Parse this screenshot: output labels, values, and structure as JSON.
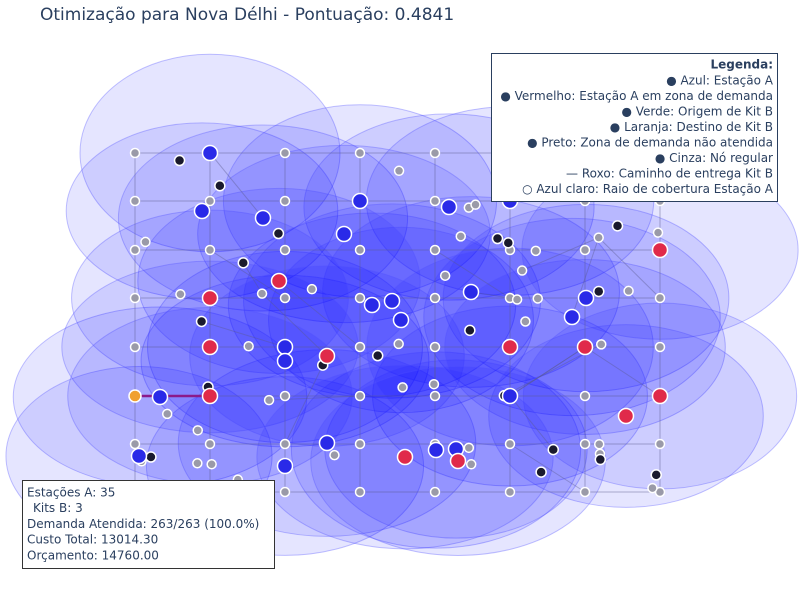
{
  "header": {
    "title": "Otimização para Nova Délhi - Pontuação: 0.4841"
  },
  "legend": {
    "heading": "Legenda:",
    "items": [
      "● Azul: Estação A",
      "● Vermelho: Estação A em zona de demanda",
      "● Verde: Origem de Kit B",
      "● Laranja: Destino de Kit B",
      "● Preto: Zona de demanda não atendida",
      "● Cinza: Nó regular",
      "— Roxo: Caminho de entrega Kit B",
      "○ Azul claro: Raio de cobertura Estação A"
    ]
  },
  "stats": {
    "lines": [
      "Estações A: 35",
      "Kits B: 3",
      "Demanda Atendida: 263/263 (100.0%)",
      "Custo Total: 13014.30",
      "Orçamento: 14760.00"
    ]
  }
}
